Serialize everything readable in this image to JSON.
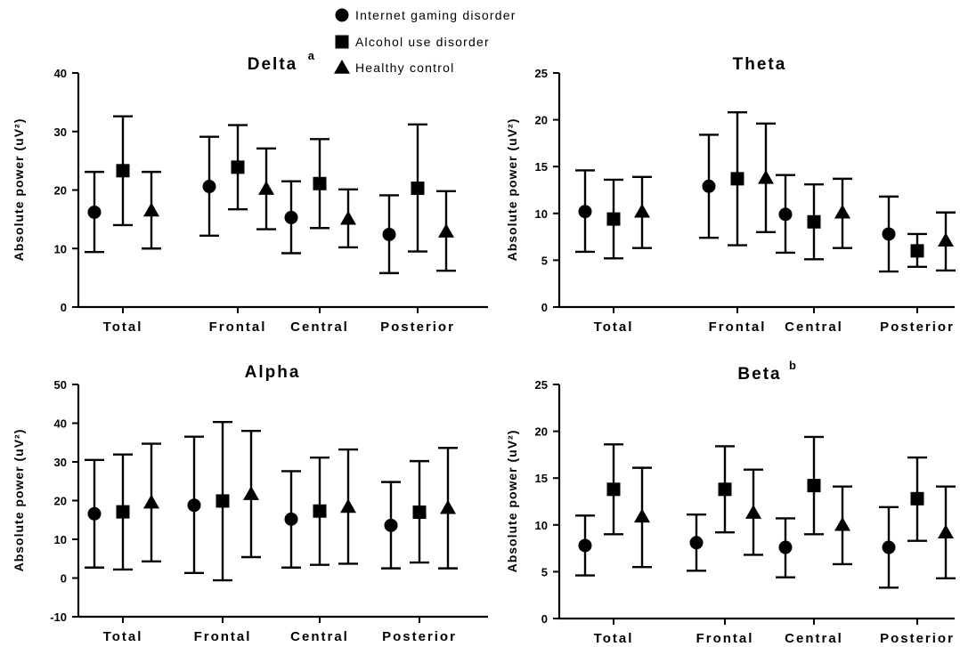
{
  "legend": [
    {
      "label": "Internet gaming disorder",
      "marker": "circle"
    },
    {
      "label": "Alcohol use disorder",
      "marker": "square"
    },
    {
      "label": "Healthy control",
      "marker": "triangle"
    }
  ],
  "colors": {
    "marker": "#000000",
    "axis": "#000000",
    "background": "#ffffff"
  },
  "chart_data": [
    {
      "type": "scatter",
      "title": "Delta",
      "title_superscript": "a",
      "ylabel": "Absolute power (uV²)",
      "ylabel_sup": "2",
      "categories": [
        "Total",
        "Frontal",
        "Central",
        "Posterior"
      ],
      "ylim": [
        0,
        40
      ],
      "yticks": [
        0,
        10,
        20,
        30,
        40
      ],
      "series": [
        {
          "name": "Internet gaming disorder",
          "marker": "circle",
          "mean": [
            16.2,
            20.6,
            15.3,
            12.4
          ],
          "lower": [
            9.4,
            12.2,
            9.2,
            5.8
          ],
          "upper": [
            23.1,
            29.1,
            21.5,
            19.1
          ]
        },
        {
          "name": "Alcohol use disorder",
          "marker": "square",
          "mean": [
            23.3,
            23.9,
            21.1,
            20.3
          ],
          "lower": [
            14.0,
            16.7,
            13.5,
            9.5
          ],
          "upper": [
            32.6,
            31.1,
            28.7,
            31.2
          ]
        },
        {
          "name": "Healthy control",
          "marker": "triangle",
          "mean": [
            16.5,
            20.2,
            15.1,
            12.9
          ],
          "lower": [
            10.0,
            13.3,
            10.2,
            6.2
          ],
          "upper": [
            23.1,
            27.1,
            20.1,
            19.8
          ]
        }
      ]
    },
    {
      "type": "scatter",
      "title": "Theta",
      "title_superscript": "",
      "ylabel": "Absolute power (uV²)",
      "ylabel_sup": "2",
      "categories": [
        "Total",
        "Frontal",
        "Central",
        "Posterior"
      ],
      "ylim": [
        0,
        25
      ],
      "yticks": [
        0,
        5,
        10,
        15,
        20,
        25
      ],
      "series": [
        {
          "name": "Internet gaming disorder",
          "marker": "circle",
          "mean": [
            10.2,
            12.9,
            9.9,
            7.8
          ],
          "lower": [
            5.9,
            7.4,
            5.8,
            3.8
          ],
          "upper": [
            14.6,
            18.4,
            14.1,
            11.8
          ]
        },
        {
          "name": "Alcohol use disorder",
          "marker": "square",
          "mean": [
            9.4,
            13.7,
            9.1,
            6.0
          ],
          "lower": [
            5.2,
            6.6,
            5.1,
            4.3
          ],
          "upper": [
            13.6,
            20.8,
            13.1,
            7.8
          ]
        },
        {
          "name": "Healthy control",
          "marker": "triangle",
          "mean": [
            10.2,
            13.8,
            10.1,
            7.1
          ],
          "lower": [
            6.3,
            8.0,
            6.3,
            3.9
          ],
          "upper": [
            13.9,
            19.6,
            13.7,
            10.1
          ]
        }
      ]
    },
    {
      "type": "scatter",
      "title": "Alpha",
      "title_superscript": "",
      "ylabel": "Absolute power (uV²)",
      "ylabel_sup": "2",
      "categories": [
        "Total",
        "Frontal",
        "Central",
        "Posterior"
      ],
      "ylim": [
        -10,
        50
      ],
      "yticks": [
        -10,
        0,
        10,
        20,
        30,
        40,
        50
      ],
      "series": [
        {
          "name": "Internet gaming disorder",
          "marker": "circle",
          "mean": [
            16.6,
            18.8,
            15.2,
            13.6
          ],
          "lower": [
            2.7,
            1.3,
            2.7,
            2.5
          ],
          "upper": [
            30.5,
            36.5,
            27.6,
            24.8
          ]
        },
        {
          "name": "Alcohol use disorder",
          "marker": "square",
          "mean": [
            17.1,
            19.9,
            17.3,
            17.0
          ],
          "lower": [
            2.2,
            -0.6,
            3.4,
            4.0
          ],
          "upper": [
            31.9,
            40.3,
            31.1,
            30.2
          ]
        },
        {
          "name": "Healthy control",
          "marker": "triangle",
          "mean": [
            19.5,
            21.7,
            18.4,
            18.1
          ],
          "lower": [
            4.3,
            5.4,
            3.7,
            2.5
          ],
          "upper": [
            34.7,
            38.0,
            33.2,
            33.6
          ]
        }
      ]
    },
    {
      "type": "scatter",
      "title": "Beta",
      "title_superscript": "b",
      "ylabel": "Absolute power (uV²)",
      "ylabel_sup": "2",
      "categories": [
        "Total",
        "Frontal",
        "Central",
        "Posterior"
      ],
      "ylim": [
        0,
        25
      ],
      "yticks": [
        0,
        5,
        10,
        15,
        20,
        25
      ],
      "series": [
        {
          "name": "Internet gaming disorder",
          "marker": "circle",
          "mean": [
            7.8,
            8.1,
            7.6,
            7.6
          ],
          "lower": [
            4.6,
            5.1,
            4.4,
            3.3
          ],
          "upper": [
            11.0,
            11.1,
            10.7,
            11.9
          ]
        },
        {
          "name": "Alcohol use disorder",
          "marker": "square",
          "mean": [
            13.8,
            13.8,
            14.2,
            12.8
          ],
          "lower": [
            9.0,
            9.2,
            9.0,
            8.3
          ],
          "upper": [
            18.6,
            18.4,
            19.4,
            17.2
          ]
        },
        {
          "name": "Healthy control",
          "marker": "triangle",
          "mean": [
            10.9,
            11.3,
            10.0,
            9.2
          ],
          "lower": [
            5.5,
            6.8,
            5.8,
            4.3
          ],
          "upper": [
            16.1,
            15.9,
            14.1,
            14.1
          ]
        }
      ]
    }
  ]
}
